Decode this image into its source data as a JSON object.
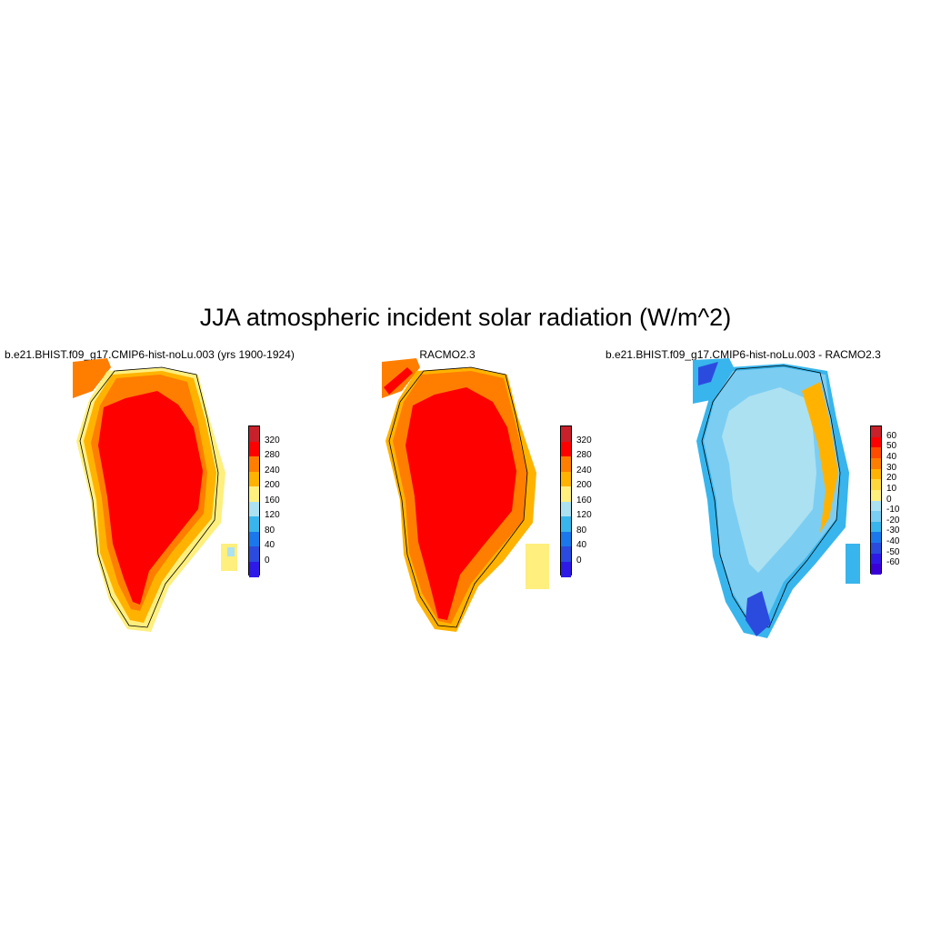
{
  "figure": {
    "title": "JJA atmospheric incident solar radiation (W/m^2)"
  },
  "panels": [
    {
      "id": "model",
      "title": "b.e21.BHIST.f09_g17.CMIP6-hist-noLu.003 (yrs 1900-1924)",
      "colorbar": {
        "labels": [
          "320",
          "280",
          "240",
          "200",
          "160",
          "120",
          "80",
          "40",
          "0"
        ],
        "colors": [
          "#c8212b",
          "#ff0000",
          "#ff7e00",
          "#ffb300",
          "#ffef7e",
          "#ace1f2",
          "#38b5ec",
          "#1a78ec",
          "#2b4bdf",
          "#2e1ae6"
        ]
      }
    },
    {
      "id": "racmo",
      "title": "RACMO2.3",
      "colorbar": {
        "labels": [
          "320",
          "280",
          "240",
          "200",
          "160",
          "120",
          "80",
          "40",
          "0"
        ],
        "colors": [
          "#c8212b",
          "#ff0000",
          "#ff7e00",
          "#ffb300",
          "#ffef7e",
          "#ace1f2",
          "#38b5ec",
          "#1a78ec",
          "#2b4bdf",
          "#2e1ae6"
        ]
      }
    },
    {
      "id": "diff",
      "title": "b.e21.BHIST.f09_g17.CMIP6-hist-noLu.003 - RACMO2.3",
      "colorbar": {
        "labels": [
          "60",
          "50",
          "40",
          "30",
          "20",
          "10",
          "0",
          "-10",
          "-20",
          "-30",
          "-40",
          "-50",
          "-60"
        ],
        "colors": [
          "#c8212b",
          "#ff0000",
          "#ff4b00",
          "#ff7e00",
          "#ffb300",
          "#ffd83d",
          "#ffef7e",
          "#ace1f2",
          "#7ccdf2",
          "#38b5ec",
          "#1a78ec",
          "#2b4bdf",
          "#2e1ae6",
          "#3a00d8"
        ]
      }
    }
  ]
}
